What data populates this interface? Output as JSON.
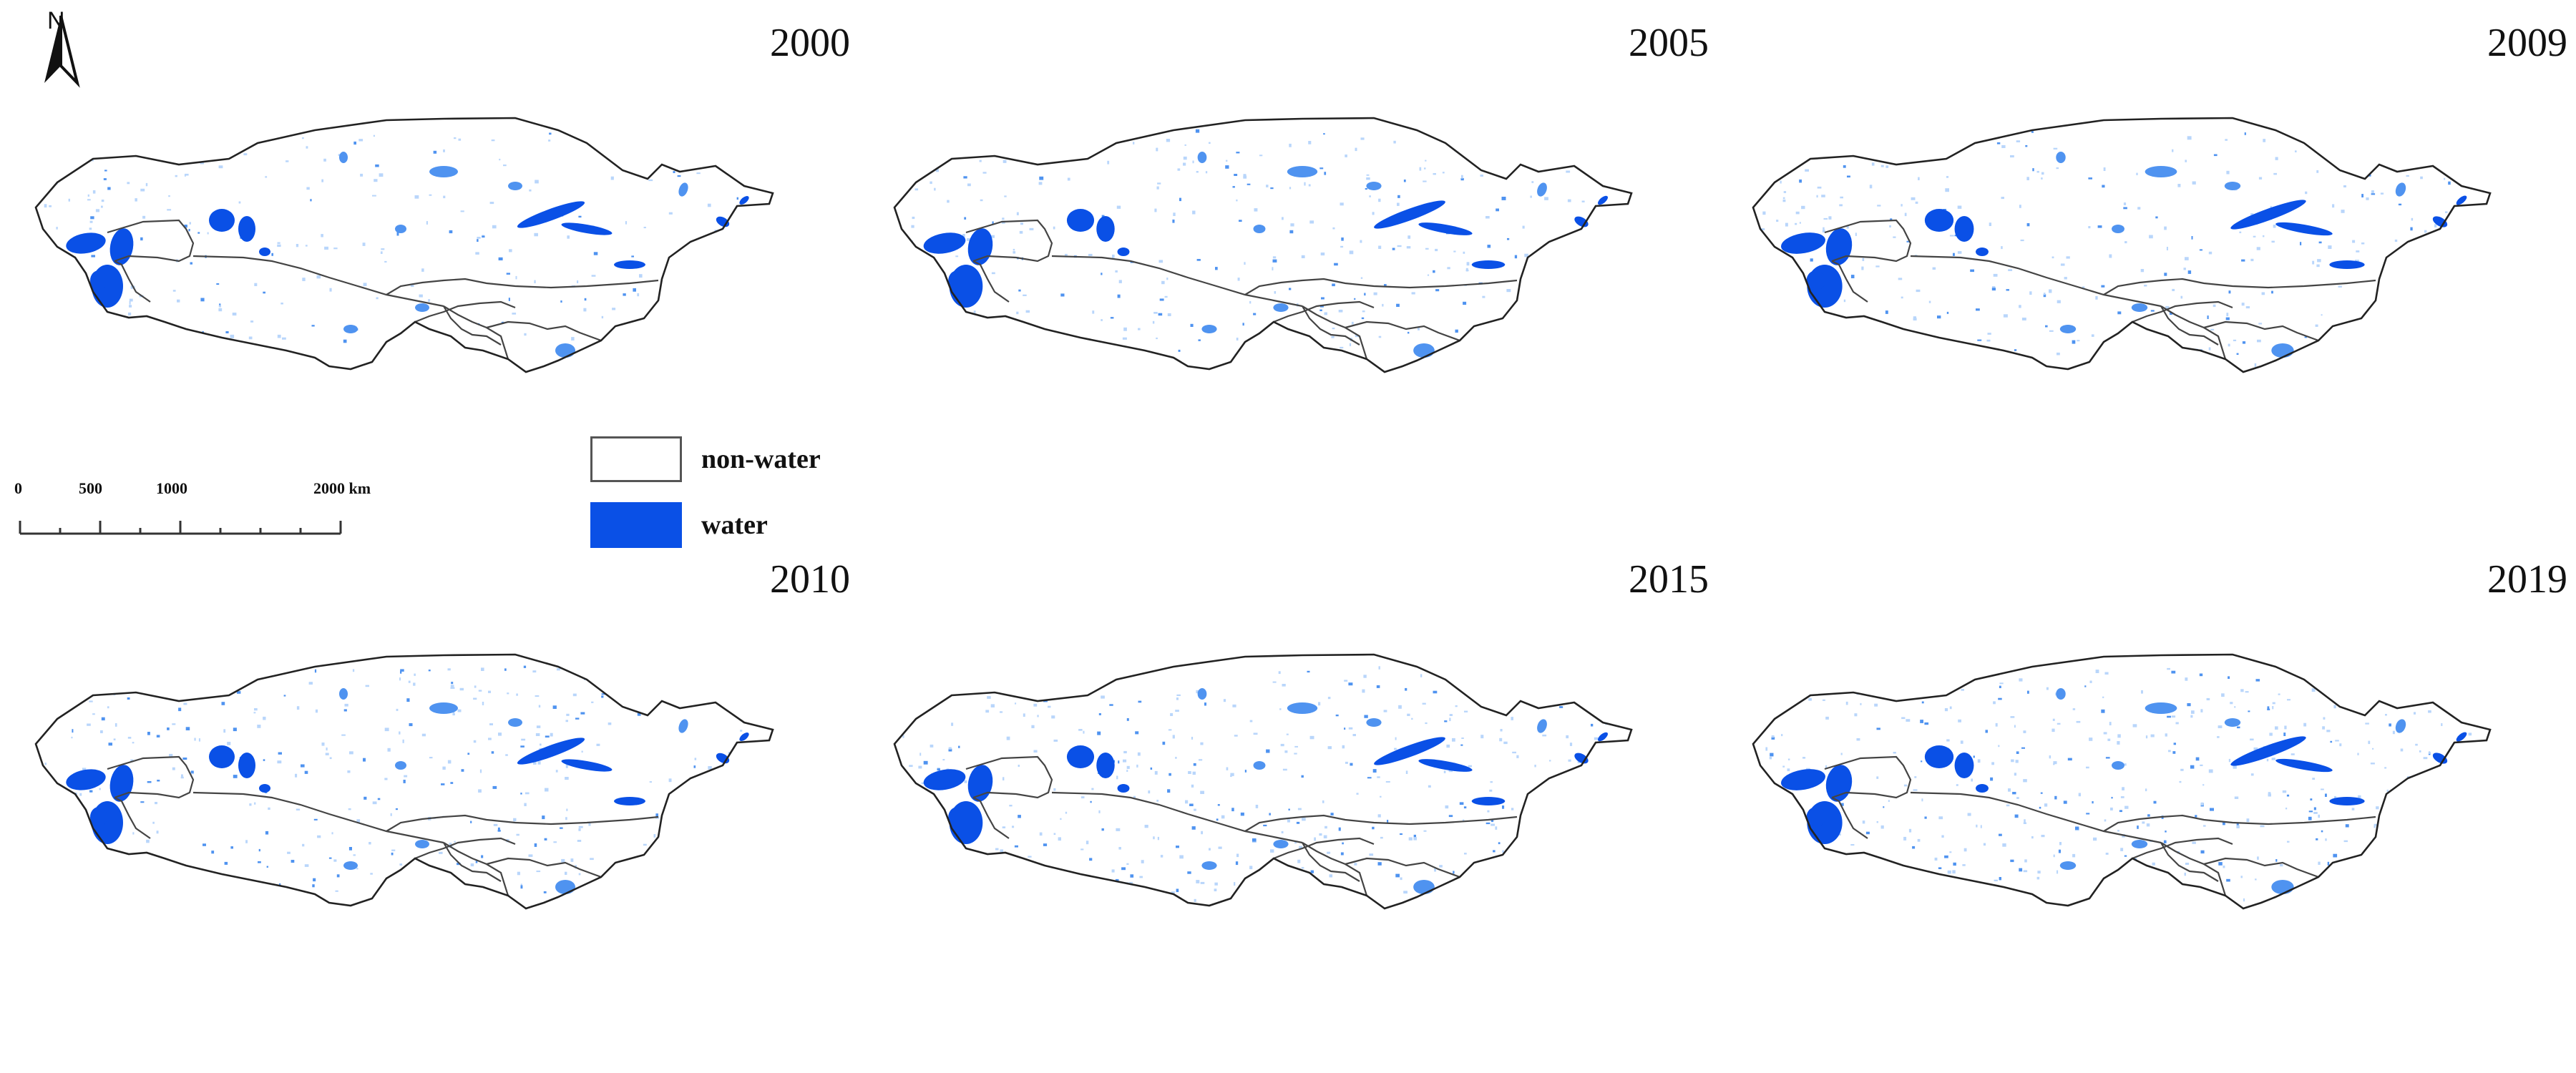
{
  "north_arrow": {
    "label": "N",
    "icon": "north-arrow-icon"
  },
  "scale_bar": {
    "ticks": [
      "0",
      "500",
      "1000",
      "2000 km"
    ]
  },
  "legend": {
    "items": [
      {
        "label": "non-water",
        "color": "#ffffff",
        "border": "#555555"
      },
      {
        "label": "water",
        "color": "#0a50e6",
        "border": "#0a50e6"
      }
    ]
  },
  "colors": {
    "water": "#0a50e6",
    "water_light": "#4f93f0",
    "water_faint": "#b9d6fb",
    "boundary": "#222222"
  },
  "panels": [
    {
      "year": "2000"
    },
    {
      "year": "2005"
    },
    {
      "year": "2009"
    },
    {
      "year": "2010"
    },
    {
      "year": "2015"
    },
    {
      "year": "2019"
    }
  ]
}
